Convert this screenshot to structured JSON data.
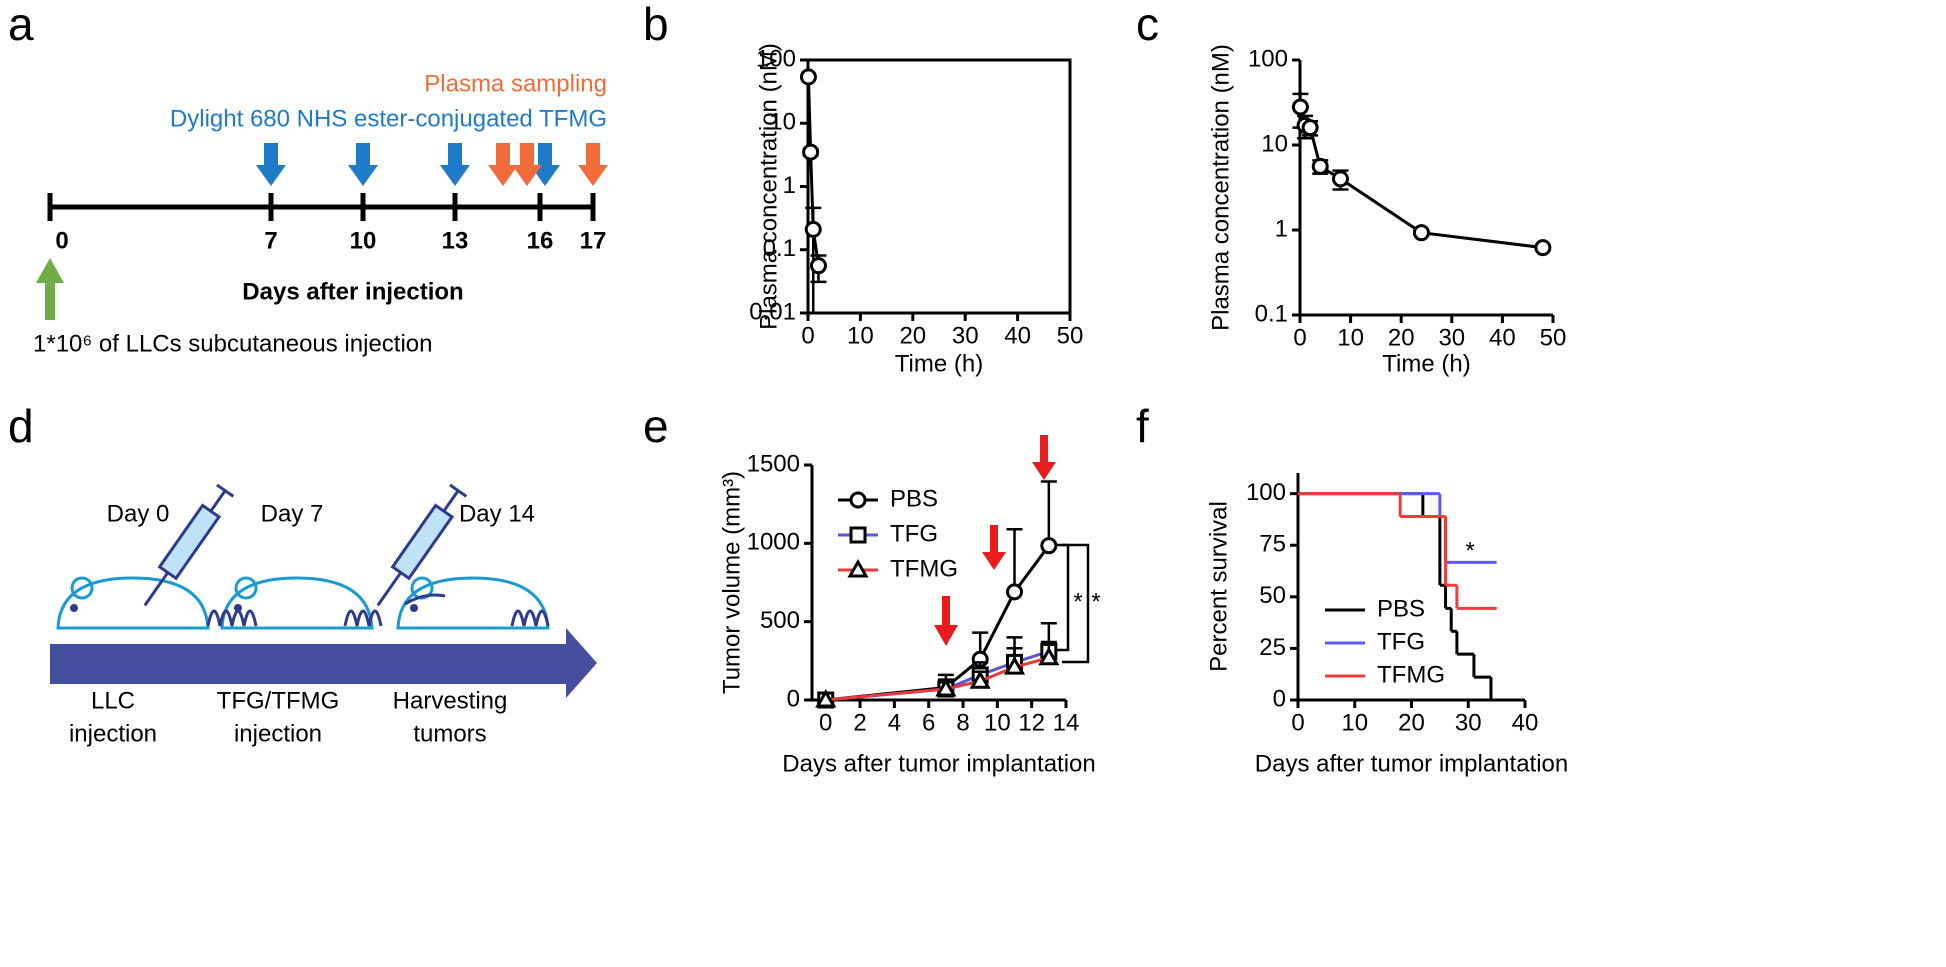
{
  "panel_labels": [
    "a",
    "b",
    "c",
    "d",
    "e",
    "f"
  ],
  "timeline": {
    "sampling_label": "Plasma sampling",
    "dose_label": "Dylight 680 NHS ester-conjugated TFMG",
    "days": [
      0,
      7,
      10,
      13,
      16,
      17
    ],
    "xlabel": "Days after injection",
    "injection_note": "1*10⁶ of LLCs subcutaneous injection"
  },
  "schedule": {
    "days": [
      "Day 0",
      "Day 7",
      "Day 14"
    ],
    "steps": [
      [
        "LLC",
        "injection"
      ],
      [
        "TFG/TFMG",
        "injection"
      ],
      [
        "Harvesting",
        "tumors"
      ]
    ]
  },
  "chart_data": [
    {
      "type": "line",
      "xlabel": "Time (h)",
      "ylabel": "Plasma concentration (nM)",
      "log_y": true,
      "frame": "box",
      "x": [
        0.083,
        0.5,
        1,
        2
      ],
      "series": [
        {
          "color": "#000000",
          "marker": "circle",
          "values": [
            54,
            3.5,
            0.21,
            0.056
          ],
          "errors": [
            0,
            0.4,
            0.25,
            0.025
          ]
        }
      ],
      "xlim": [
        0,
        50
      ],
      "xticks": [
        0,
        10,
        20,
        30,
        40,
        50
      ],
      "ylim": [
        0.01,
        100
      ],
      "yticks": [
        0.01,
        0.1,
        1,
        10,
        100
      ]
    },
    {
      "type": "line",
      "xlabel": "Time (h)",
      "ylabel": "Plasma concentration (nM)",
      "log_y": true,
      "frame": "axes",
      "x": [
        0.083,
        1,
        2,
        4,
        8,
        24,
        48
      ],
      "series": [
        {
          "color": "#000000",
          "marker": "circle",
          "values": [
            28,
            17,
            16,
            5.6,
            4,
            0.93,
            0.62
          ],
          "errors": [
            12,
            5,
            3,
            1,
            1,
            0.05,
            0.03
          ]
        }
      ],
      "xlim": [
        0,
        50
      ],
      "xticks": [
        0,
        10,
        20,
        30,
        40,
        50
      ],
      "ylim": [
        0.1,
        100
      ],
      "yticks": [
        0.1,
        1,
        10,
        100
      ]
    },
    {
      "type": "line",
      "xlabel": "Days after tumor implantation",
      "ylabel": "Tumor volume (mm³)",
      "frame": "axes",
      "error_bars": "up",
      "marker_edge": "#000000",
      "legend": "upper left",
      "annotations": [
        "*",
        "*"
      ],
      "x": [
        0,
        7,
        9,
        11,
        13
      ],
      "series": [
        {
          "name": "PBS",
          "color": "#000000",
          "marker": "circle",
          "values": [
            0,
            80,
            260,
            690,
            985
          ],
          "errors": [
            0,
            80,
            170,
            400,
            410
          ]
        },
        {
          "name": "TFG",
          "color": "#5757d8",
          "marker": "square",
          "values": [
            0,
            70,
            160,
            240,
            310
          ],
          "errors": [
            0,
            60,
            80,
            160,
            180
          ]
        },
        {
          "name": "TFMG",
          "color": "#e83a3a",
          "marker": "triangle",
          "values": [
            0,
            70,
            120,
            210,
            270
          ],
          "errors": [
            0,
            50,
            60,
            120,
            100
          ]
        }
      ],
      "xlim": [
        -0.8,
        14
      ],
      "xticks": [
        0,
        2,
        4,
        6,
        8,
        10,
        12,
        14
      ],
      "ylim": [
        0,
        1500
      ],
      "yticks": [
        0,
        500,
        1000,
        1500
      ]
    },
    {
      "type": "step",
      "xlabel": "Days after tumor implantation",
      "ylabel": "Percent survival",
      "frame": "axes",
      "legend": "lower left",
      "annotations": [
        "*"
      ],
      "series": [
        {
          "name": "PBS",
          "color": "#000000",
          "x": [
            0,
            22,
            25,
            26,
            27,
            28,
            31,
            34
          ],
          "values": [
            100,
            88.9,
            55.6,
            44.4,
            33.3,
            22.2,
            11.1,
            0
          ]
        },
        {
          "name": "TFG",
          "color": "#5b5bf0",
          "x": [
            0,
            25,
            26,
            35
          ],
          "values": [
            100,
            88.9,
            66.7,
            66.7
          ]
        },
        {
          "name": "TFMG",
          "color": "#ef3b3b",
          "x": [
            0,
            18,
            26,
            28,
            35
          ],
          "values": [
            100,
            88.9,
            55.6,
            44.4,
            44.4
          ]
        }
      ],
      "xlim": [
        0,
        40
      ],
      "xticks": [
        0,
        10,
        20,
        30,
        40
      ],
      "ylim": [
        0,
        110
      ],
      "yticks": [
        0,
        25,
        50,
        75,
        100
      ]
    }
  ]
}
